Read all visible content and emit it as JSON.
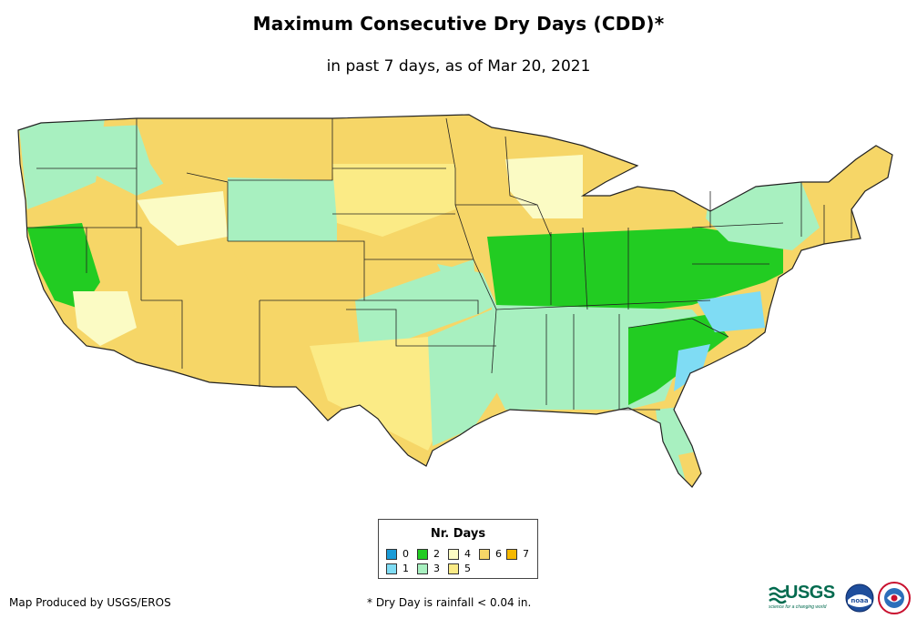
{
  "title": "Maximum Consecutive Dry Days (CDD)*",
  "subtitle": "in past 7 days, as of Mar 20, 2021",
  "legend": {
    "title": "Nr. Days",
    "items": [
      {
        "label": "0",
        "color": "#1a9bd7"
      },
      {
        "label": "1",
        "color": "#7fdcf4"
      },
      {
        "label": "2",
        "color": "#22cc22"
      },
      {
        "label": "3",
        "color": "#a8f0c0"
      },
      {
        "label": "4",
        "color": "#fbfbc4"
      },
      {
        "label": "5",
        "color": "#fbeb86"
      },
      {
        "label": "6",
        "color": "#f6d667"
      },
      {
        "label": "7",
        "color": "#f5b800"
      }
    ]
  },
  "credit": "Map Produced by USGS/EROS",
  "footnote": "* Dry Day is rainfall < 0.04 in.",
  "logos": {
    "usgs": "USGS",
    "usgs_tagline": "science for a changing world",
    "noaa": "noaa"
  }
}
